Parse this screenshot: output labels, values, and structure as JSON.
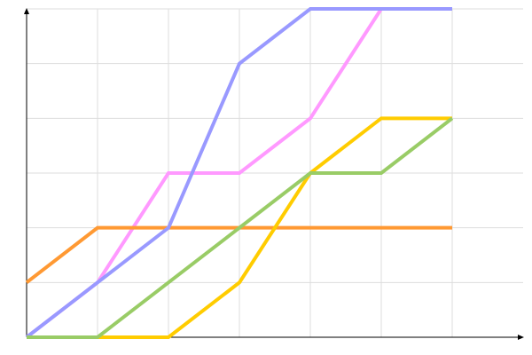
{
  "chart_data": {
    "type": "line",
    "title": "",
    "xlabel": "",
    "ylabel": "",
    "x": [
      0,
      1,
      2,
      3,
      4,
      5,
      6
    ],
    "xlim": [
      0,
      7
    ],
    "ylim": [
      0,
      6
    ],
    "grid": true,
    "legend": "none",
    "series": [
      {
        "color": "#ff99ff",
        "values": [
          0,
          1,
          3,
          3,
          4,
          6,
          6
        ]
      },
      {
        "color": "#ff9933",
        "values": [
          1,
          2,
          2,
          2,
          2,
          2,
          2
        ]
      },
      {
        "color": "#9999ff",
        "values": [
          0,
          1,
          2,
          5,
          6,
          6,
          6
        ]
      },
      {
        "color": "#ffcc00",
        "values": [
          0,
          0,
          0,
          1,
          3,
          4,
          4
        ]
      },
      {
        "color": "#99cc66",
        "values": [
          0,
          0,
          1,
          2,
          3,
          3,
          4
        ]
      }
    ]
  }
}
